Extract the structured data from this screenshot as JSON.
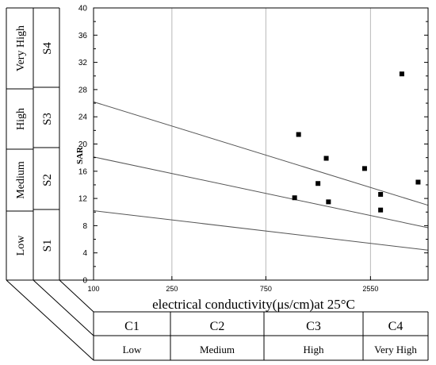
{
  "chart_data": {
    "type": "scatter",
    "title": "",
    "xlabel": "electrical conductivity(μs/cm)at 25°C",
    "ylabel": "SAR",
    "x_scale": "log",
    "xlim": [
      100,
      5000
    ],
    "ylim": [
      0,
      40
    ],
    "x_ticks": [
      "100",
      "250",
      "750",
      "2550"
    ],
    "y_ticks": [
      "0",
      "4",
      "8",
      "12",
      "16",
      "20",
      "24",
      "28",
      "32",
      "36",
      "40"
    ],
    "grid": "vertical lines at x ticks",
    "points": [
      {
        "x": 1100,
        "y": 21.4
      },
      {
        "x": 1050,
        "y": 12.1
      },
      {
        "x": 1380,
        "y": 14.2
      },
      {
        "x": 1520,
        "y": 17.9
      },
      {
        "x": 1560,
        "y": 11.5
      },
      {
        "x": 2380,
        "y": 16.4
      },
      {
        "x": 2870,
        "y": 12.6
      },
      {
        "x": 2870,
        "y": 10.3
      },
      {
        "x": 3680,
        "y": 30.3
      },
      {
        "x": 4450,
        "y": 14.4
      }
    ],
    "boundary_lines": [
      {
        "name": "S1/S2",
        "from": {
          "x": 100,
          "y": 10.2
        },
        "to": {
          "x": 5000,
          "y": 4.4
        }
      },
      {
        "name": "S2/S3",
        "from": {
          "x": 100,
          "y": 18.1
        },
        "to": {
          "x": 5000,
          "y": 7.7
        }
      },
      {
        "name": "S3/S4",
        "from": {
          "x": 100,
          "y": 26.2
        },
        "to": {
          "x": 5000,
          "y": 11.0
        }
      }
    ],
    "sodium_hazard": [
      {
        "class": "S1",
        "label": "Low"
      },
      {
        "class": "S2",
        "label": "Medium"
      },
      {
        "class": "S3",
        "label": "High"
      },
      {
        "class": "S4",
        "label": "Very High"
      }
    ],
    "salinity_hazard": [
      {
        "class": "C1",
        "label": "Low"
      },
      {
        "class": "C2",
        "label": "Medium"
      },
      {
        "class": "C3",
        "label": "High"
      },
      {
        "class": "C4",
        "label": "Very High"
      }
    ]
  }
}
